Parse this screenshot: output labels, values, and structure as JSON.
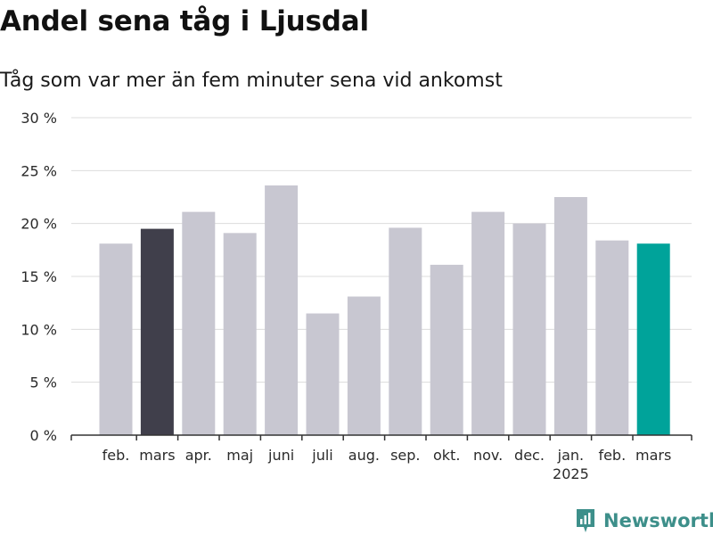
{
  "title": "Andel sena tåg i Ljusdal",
  "subtitle": "Tåg som var mer än fem minuter sena vid ankomst",
  "brand": {
    "name": "Newsworthy",
    "icon": "newsworthy-logo-icon"
  },
  "colors": {
    "default_bar": "#c8c7d1",
    "highlight_prev": "#403f4b",
    "highlight_current": "#00a39a",
    "grid": "#dcdcdc",
    "axis": "#333333"
  },
  "chart_data": {
    "type": "bar",
    "title": "Andel sena tåg i Ljusdal",
    "subtitle": "Tåg som var mer än fem minuter sena vid ankomst",
    "xlabel": "",
    "ylabel": "",
    "ylim": [
      0,
      30
    ],
    "yticks": [
      "0 %",
      "5 %",
      "10 %",
      "15 %",
      "20 %",
      "25 %",
      "30 %"
    ],
    "ytick_values": [
      0,
      5,
      10,
      15,
      20,
      25,
      30
    ],
    "grid": true,
    "legend": "none",
    "categories": [
      "feb.",
      "mars",
      "apr.",
      "maj",
      "juni",
      "juli",
      "aug.",
      "sep.",
      "okt.",
      "nov.",
      "dec.",
      "jan.",
      "feb.",
      "mars"
    ],
    "year_labels": [
      {
        "category_index": 11,
        "label": "2025"
      }
    ],
    "values": [
      18.1,
      19.5,
      21.1,
      19.1,
      23.6,
      11.5,
      13.1,
      19.6,
      16.1,
      21.1,
      20.0,
      22.5,
      18.4,
      18.1
    ],
    "bar_colors": [
      "#c8c7d1",
      "#403f4b",
      "#c8c7d1",
      "#c8c7d1",
      "#c8c7d1",
      "#c8c7d1",
      "#c8c7d1",
      "#c8c7d1",
      "#c8c7d1",
      "#c8c7d1",
      "#c8c7d1",
      "#c8c7d1",
      "#c8c7d1",
      "#00a39a"
    ]
  }
}
